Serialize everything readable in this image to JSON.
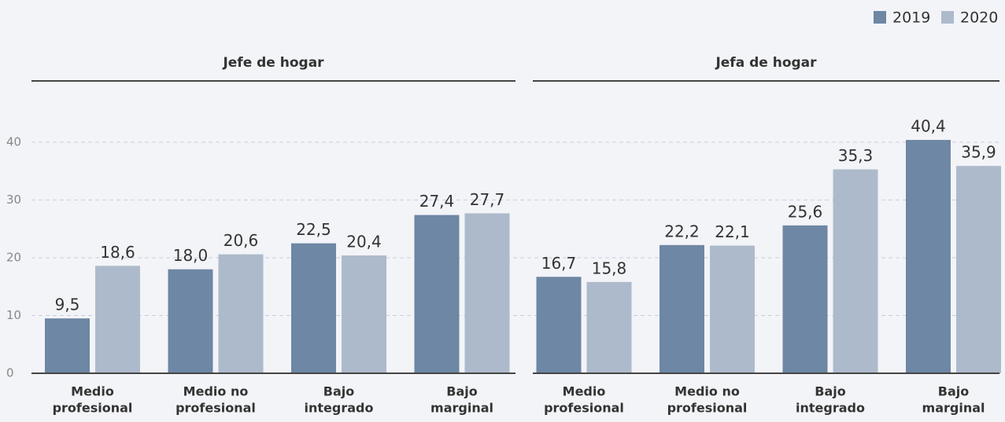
{
  "chart_data": [
    {
      "type": "bar",
      "title": "Jefe de hogar",
      "categories": [
        [
          "Medio",
          "profesional"
        ],
        [
          "Medio no",
          "profesional"
        ],
        [
          "Bajo",
          "integrado"
        ],
        [
          "Bajo",
          "marginal"
        ]
      ],
      "series": [
        {
          "name": "2019",
          "color": "#6d87a4",
          "values": [
            9.5,
            18.0,
            22.5,
            27.4
          ],
          "value_labels": [
            "9,5",
            "18,0",
            "22,5",
            "27,4"
          ]
        },
        {
          "name": "2020",
          "color": "#adbacb",
          "values": [
            18.6,
            20.6,
            20.4,
            27.7
          ],
          "value_labels": [
            "18,6",
            "20,6",
            "20,4",
            "27,7"
          ]
        }
      ],
      "ylim": [
        0,
        50
      ],
      "yticks": [
        0,
        10,
        20,
        30,
        40
      ],
      "grid": true,
      "legend": "top-right"
    },
    {
      "type": "bar",
      "title": "Jefa de hogar",
      "categories": [
        [
          "Medio",
          "profesional"
        ],
        [
          "Medio no",
          "profesional"
        ],
        [
          "Bajo",
          "integrado"
        ],
        [
          "Bajo",
          "marginal"
        ]
      ],
      "series": [
        {
          "name": "2019",
          "color": "#6d87a4",
          "values": [
            16.7,
            22.2,
            25.6,
            40.4
          ],
          "value_labels": [
            "16,7",
            "22,2",
            "25,6",
            "40,4"
          ]
        },
        {
          "name": "2020",
          "color": "#adbacb",
          "values": [
            15.8,
            22.1,
            35.3,
            35.9
          ],
          "value_labels": [
            "15,8",
            "22,1",
            "35,3",
            "35,9"
          ]
        }
      ],
      "ylim": [
        0,
        50
      ],
      "yticks": [
        0,
        10,
        20,
        30,
        40
      ],
      "grid": true
    }
  ]
}
